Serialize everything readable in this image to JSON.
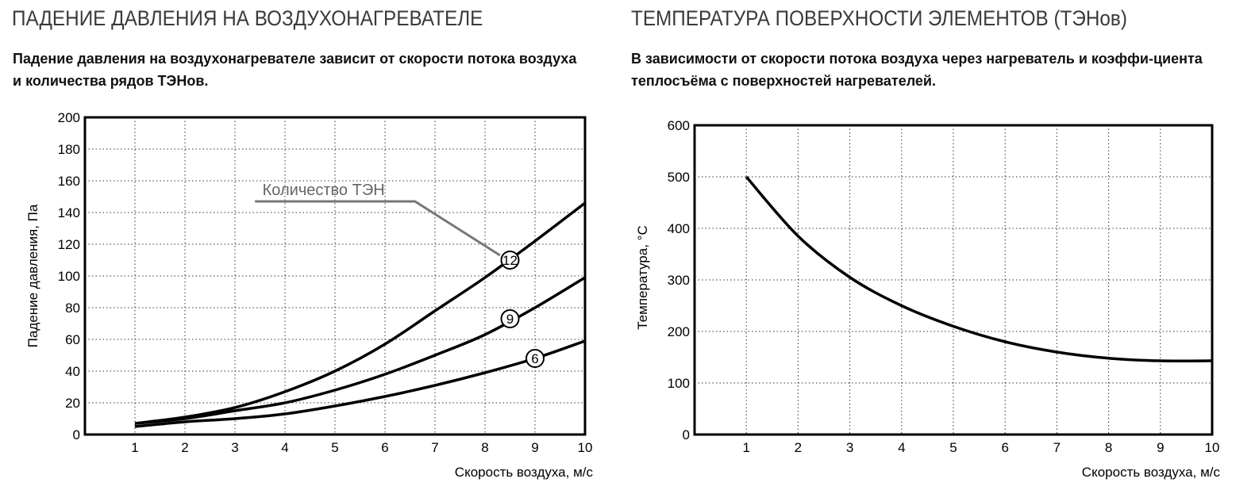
{
  "left": {
    "title": "ПАДЕНИЕ ДАВЛЕНИЯ НА ВОЗДУХОНАГРЕВАТЕЛЕ",
    "subtitle": "Падение давления на воздухонагревателе зависит от  скорости  потока воздуха и количества рядов ТЭНов."
  },
  "right": {
    "title": "ТЕМПЕРАТУРА ПОВЕРХНОСТИ ЭЛЕМЕНТОВ (ТЭНов)",
    "subtitle": "В зависимости от скорости потока воздуха через нагреватель  и  коэффи-циента  теплосъёма с поверхностей нагревателей."
  },
  "chart_data": [
    {
      "type": "line",
      "title": "Падение давления на воздухонагревателе",
      "xlabel": "Скорость воздуха, м/с",
      "ylabel": "Падение давления, Па",
      "xlim": [
        0,
        10
      ],
      "ylim": [
        0,
        200
      ],
      "grid": true,
      "xticks": [
        "1",
        "2",
        "3",
        "4",
        "5",
        "6",
        "7",
        "8",
        "9",
        "10"
      ],
      "yticks": [
        "0",
        "20",
        "40",
        "60",
        "80",
        "100",
        "120",
        "140",
        "160",
        "180",
        "200"
      ],
      "annotation": "Количество ТЭН",
      "x": [
        1,
        2,
        3,
        4,
        5,
        6,
        7,
        8,
        9,
        10
      ],
      "series": [
        {
          "name": "12",
          "values": [
            7,
            11,
            17,
            27,
            40,
            57,
            78,
            99,
            122,
            146
          ]
        },
        {
          "name": "9",
          "values": [
            7,
            10,
            15,
            20,
            28,
            38,
            50,
            63,
            80,
            99
          ]
        },
        {
          "name": "6",
          "values": [
            5,
            8,
            10,
            13,
            18,
            24,
            31,
            39,
            48,
            59
          ]
        }
      ]
    },
    {
      "type": "line",
      "title": "Температура поверхности элементов (ТЭНов)",
      "xlabel": "Скорость воздуха, м/с",
      "ylabel": "Температура, °С",
      "xlim": [
        0,
        10
      ],
      "ylim": [
        0,
        600
      ],
      "grid": true,
      "xticks": [
        "1",
        "2",
        "3",
        "4",
        "5",
        "6",
        "7",
        "8",
        "9",
        "10"
      ],
      "yticks": [
        "0",
        "100",
        "200",
        "300",
        "400",
        "500",
        "600"
      ],
      "x": [
        1,
        2,
        3,
        4,
        5,
        6,
        7,
        8,
        9,
        10
      ],
      "series": [
        {
          "name": "Температура",
          "values": [
            500,
            385,
            305,
            250,
            210,
            180,
            160,
            148,
            143,
            143
          ]
        }
      ]
    }
  ]
}
